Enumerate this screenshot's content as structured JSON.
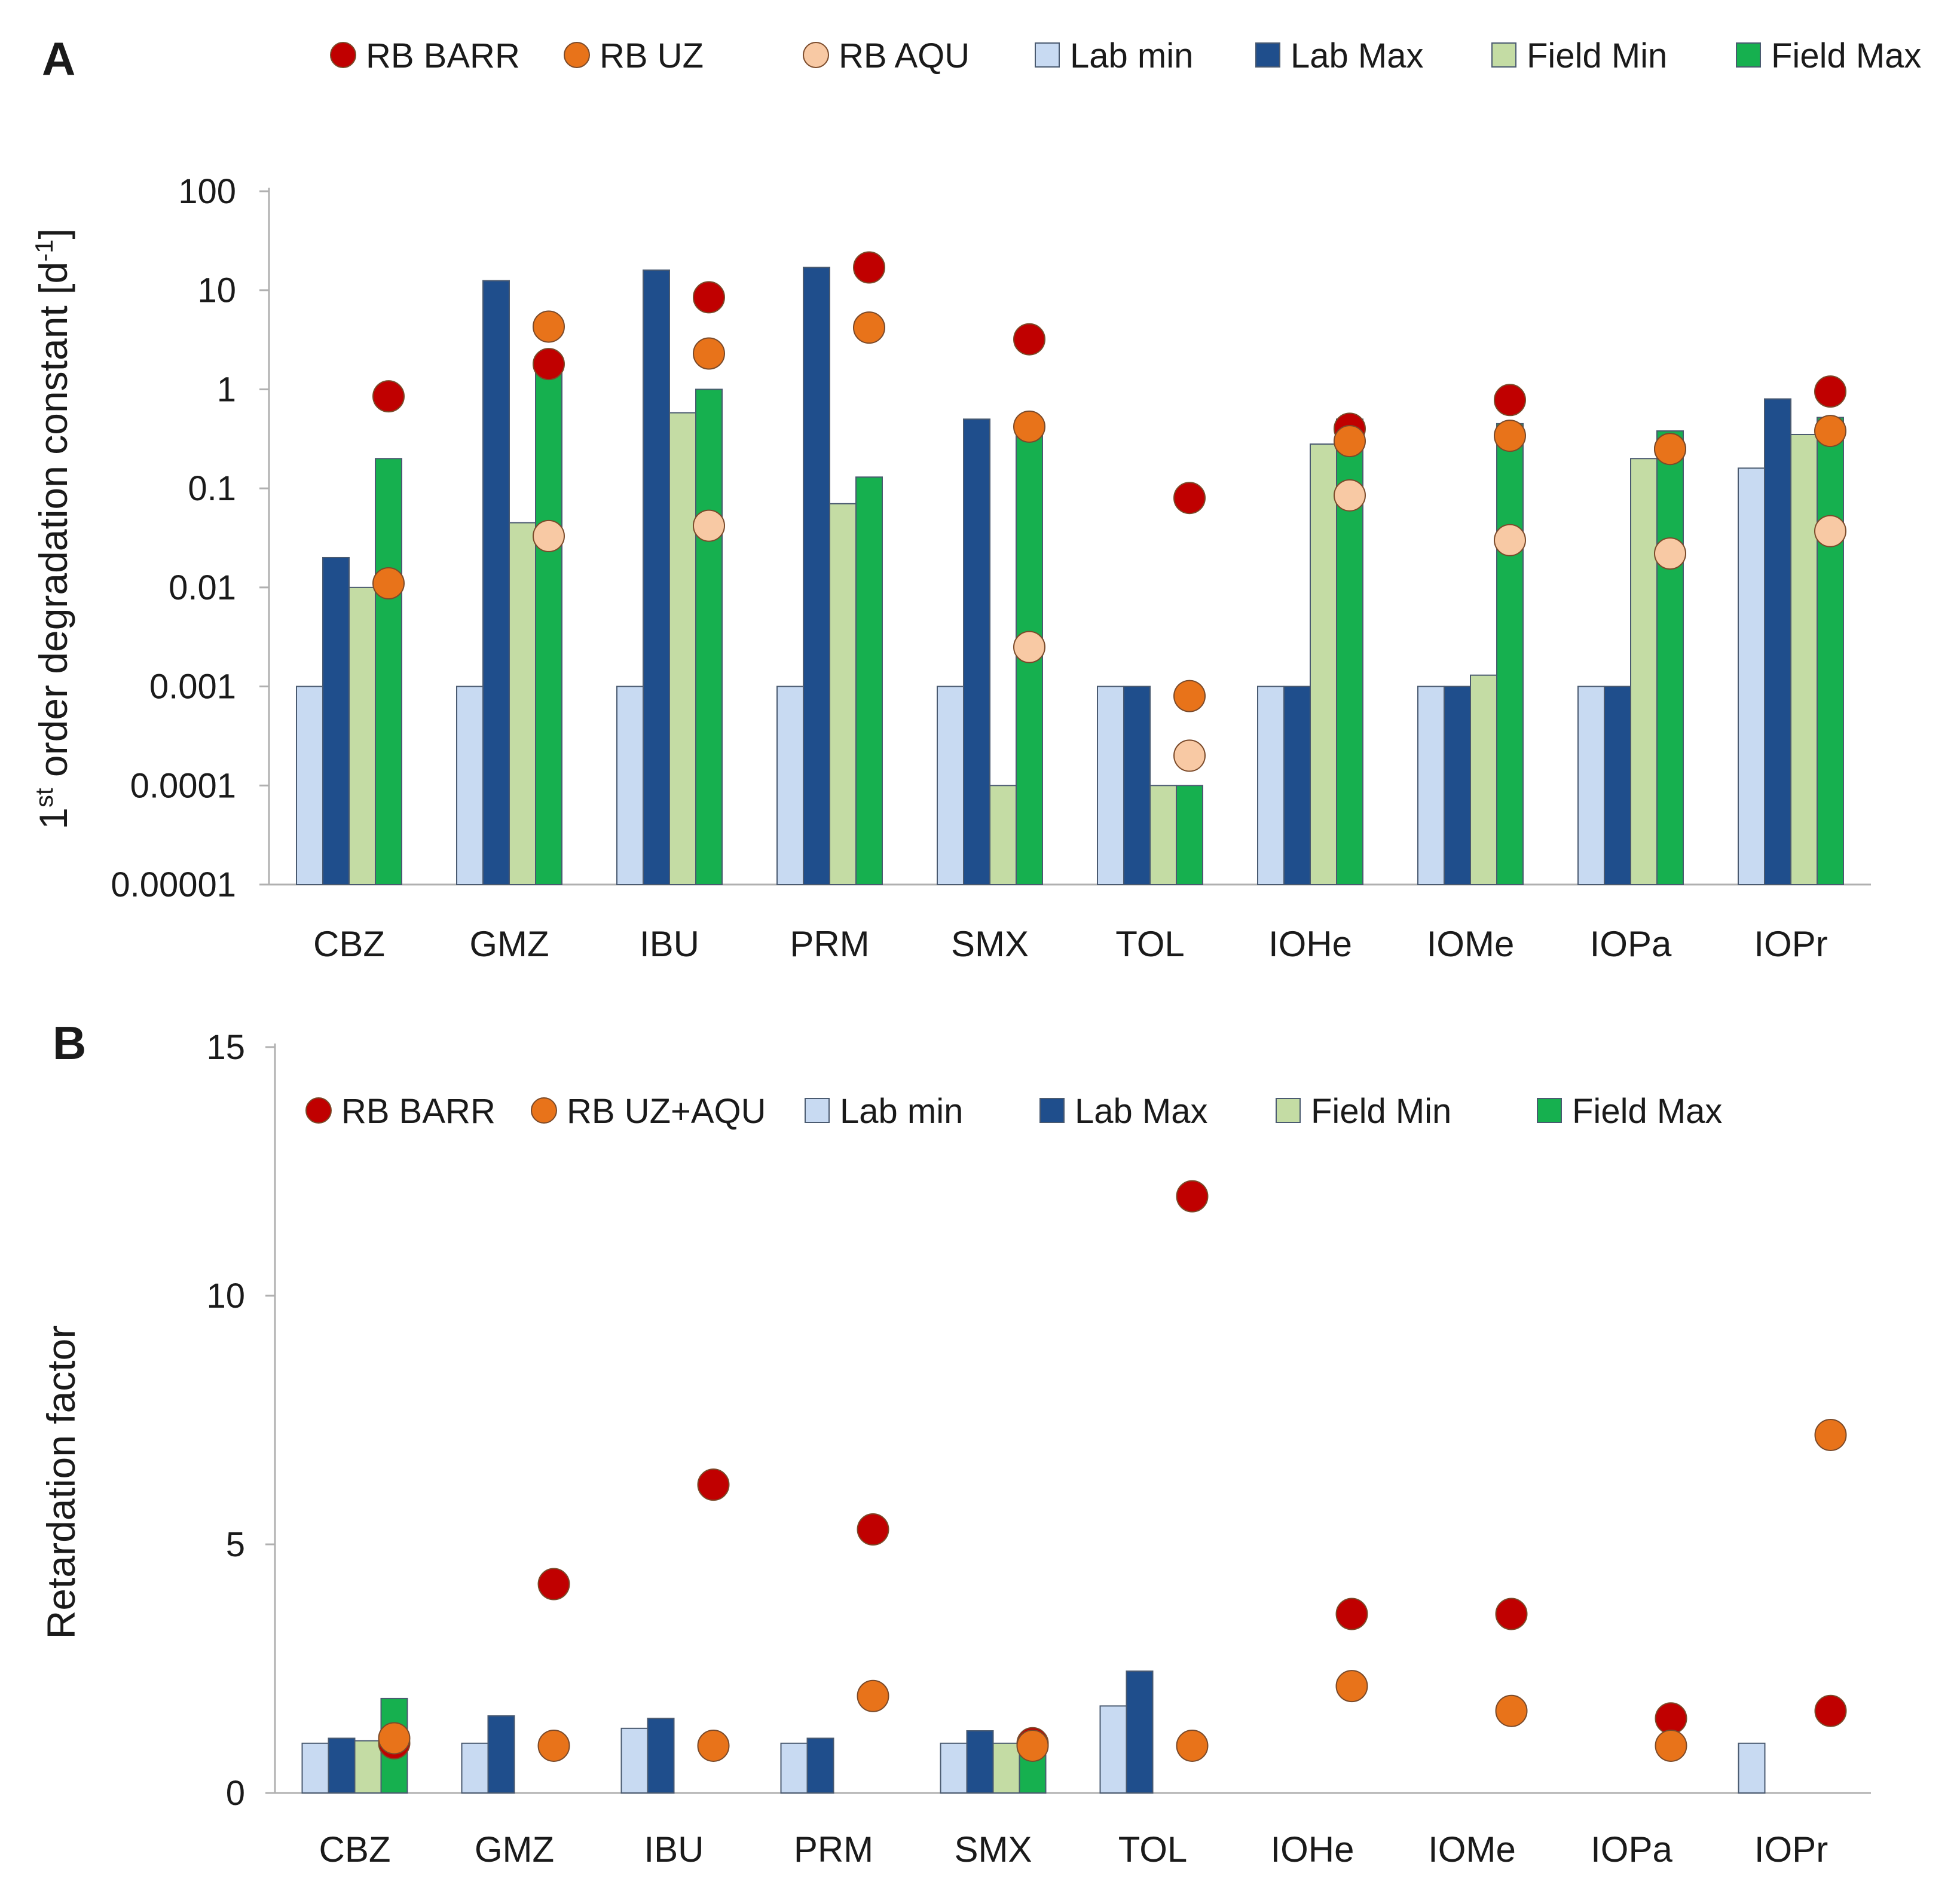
{
  "colors": {
    "rb_barr": "#c00000",
    "rb_uz": "#e8731a",
    "rb_aqu": "#f8c9a4",
    "lab_min": "#c8daf2",
    "lab_max": "#1f4e8c",
    "field_min": "#c4dca4",
    "field_max": "#16b04f",
    "axis": "#b0b0b0",
    "text": "#1a1a1a"
  },
  "chart_data": [
    {
      "type": "bar",
      "panel_label": "A",
      "scale": "log",
      "ylabel_main": "order degradation constant [d",
      "ylabel_prefix": "1",
      "ylabel_prefix_sup": "st",
      "ylabel_unit_sup": "-1",
      "ylabel_close": "]",
      "ylim": [
        1e-05,
        100
      ],
      "yticks": [
        {
          "value": 100,
          "label": "100"
        },
        {
          "value": 10,
          "label": "10"
        },
        {
          "value": 1,
          "label": "1"
        },
        {
          "value": 0.1,
          "label": "0.1"
        },
        {
          "value": 0.01,
          "label": "0.01"
        },
        {
          "value": 0.001,
          "label": "0.001"
        },
        {
          "value": 0.0001,
          "label": "0.0001"
        },
        {
          "value": 1e-05,
          "label": "0.00001"
        }
      ],
      "categories": [
        "CBZ",
        "GMZ",
        "IBU",
        "PRM",
        "SMX",
        "TOL",
        "IOHe",
        "IOMe",
        "IOPa",
        "IOPr"
      ],
      "legend": [
        {
          "key": "rb_barr",
          "label": "RB BARR",
          "marker": "circle"
        },
        {
          "key": "rb_uz",
          "label": "RB  UZ",
          "marker": "circle"
        },
        {
          "key": "rb_aqu",
          "label": "RB  AQU",
          "marker": "circle"
        },
        {
          "key": "lab_min",
          "label": "Lab min",
          "marker": "square"
        },
        {
          "key": "lab_max",
          "label": "Lab Max",
          "marker": "square"
        },
        {
          "key": "field_min",
          "label": "Field Min",
          "marker": "square"
        },
        {
          "key": "field_max",
          "label": "Field Max",
          "marker": "square"
        }
      ],
      "series": [
        {
          "key": "lab_min",
          "name": "Lab min",
          "kind": "bar",
          "values": [
            0.001,
            0.001,
            0.001,
            0.001,
            0.001,
            0.001,
            0.001,
            0.001,
            0.001,
            0.16
          ]
        },
        {
          "key": "lab_max",
          "name": "Lab Max",
          "kind": "bar",
          "values": [
            0.02,
            12.5,
            16,
            17,
            0.5,
            0.001,
            0.001,
            0.001,
            0.001,
            0.8
          ]
        },
        {
          "key": "field_min",
          "name": "Field Min",
          "kind": "bar",
          "values": [
            0.01,
            0.045,
            0.58,
            0.07,
            0.0001,
            0.0001,
            0.28,
            0.0013,
            0.2,
            0.35
          ]
        },
        {
          "key": "field_max",
          "name": "Field Max",
          "kind": "bar",
          "values": [
            0.2,
            1.8,
            1.0,
            0.13,
            0.45,
            0.0001,
            0.5,
            0.45,
            0.38,
            0.52
          ]
        },
        {
          "key": "rb_barr",
          "name": "RB BARR",
          "kind": "point",
          "values": [
            0.85,
            1.8,
            8.5,
            17,
            3.2,
            0.08,
            0.4,
            0.78,
            0.25,
            0.95
          ]
        },
        {
          "key": "rb_uz",
          "name": "RB  UZ",
          "kind": "point",
          "values": [
            0.011,
            4.3,
            2.3,
            4.2,
            0.42,
            0.0008,
            0.3,
            0.34,
            0.25,
            0.38
          ]
        },
        {
          "key": "rb_aqu",
          "name": "RB  AQU",
          "kind": "point",
          "values": [
            null,
            0.033,
            0.042,
            null,
            0.0025,
            0.0002,
            0.085,
            0.03,
            0.022,
            0.037
          ]
        }
      ]
    },
    {
      "type": "bar",
      "panel_label": "B",
      "scale": "linear",
      "ylabel": "Retardation factor",
      "ylim": [
        0,
        15
      ],
      "yticks": [
        {
          "value": 0,
          "label": "0"
        },
        {
          "value": 5,
          "label": "5"
        },
        {
          "value": 10,
          "label": "10"
        },
        {
          "value": 15,
          "label": "15"
        }
      ],
      "categories": [
        "CBZ",
        "GMZ",
        "IBU",
        "PRM",
        "SMX",
        "TOL",
        "IOHe",
        "IOMe",
        "IOPa",
        "IOPr"
      ],
      "legend": [
        {
          "key": "rb_barr",
          "label": "RB BARR",
          "marker": "circle"
        },
        {
          "key": "rb_uz",
          "label": "RB  UZ+AQU",
          "marker": "circle"
        },
        {
          "key": "lab_min",
          "label": "Lab min",
          "marker": "square"
        },
        {
          "key": "lab_max",
          "label": "Lab Max",
          "marker": "square"
        },
        {
          "key": "field_min",
          "label": "Field Min",
          "marker": "square"
        },
        {
          "key": "field_max",
          "label": "Field Max",
          "marker": "square"
        }
      ],
      "series": [
        {
          "key": "lab_min",
          "name": "Lab min",
          "kind": "bar",
          "values": [
            1.0,
            1.0,
            1.3,
            1.0,
            1.0,
            1.75,
            null,
            null,
            null,
            1.0
          ]
        },
        {
          "key": "lab_max",
          "name": "Lab Max",
          "kind": "bar",
          "values": [
            1.1,
            1.55,
            1.5,
            1.1,
            1.25,
            2.45,
            null,
            null,
            null,
            null
          ]
        },
        {
          "key": "field_min",
          "name": "Field Min",
          "kind": "bar",
          "values": [
            1.05,
            null,
            null,
            null,
            1.0,
            null,
            null,
            null,
            null,
            null
          ]
        },
        {
          "key": "field_max",
          "name": "Field Max",
          "kind": "bar",
          "values": [
            1.9,
            null,
            null,
            null,
            1.05,
            null,
            null,
            null,
            null,
            null
          ]
        },
        {
          "key": "rb_barr",
          "name": "RB BARR",
          "kind": "point",
          "values": [
            1.0,
            4.2,
            6.2,
            5.3,
            1.0,
            12.0,
            3.6,
            3.6,
            1.5,
            1.65
          ]
        },
        {
          "key": "rb_uz",
          "name": "RB  UZ+AQU",
          "kind": "point",
          "values": [
            1.1,
            0.95,
            0.95,
            1.95,
            0.95,
            0.95,
            2.15,
            1.65,
            0.95,
            7.2
          ]
        }
      ]
    }
  ]
}
